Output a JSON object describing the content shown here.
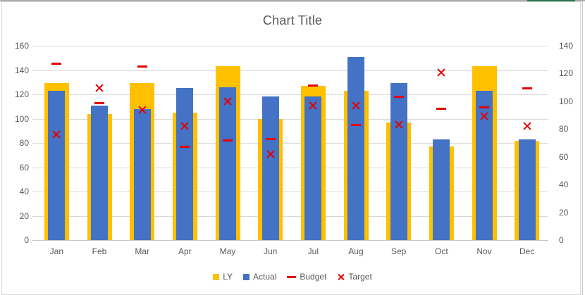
{
  "chart_data": {
    "type": "combo",
    "title": "Chart Title",
    "categories": [
      "Jan",
      "Feb",
      "Mar",
      "Apr",
      "May",
      "Jun",
      "Jul",
      "Aug",
      "Sep",
      "Oct",
      "Nov",
      "Dec"
    ],
    "series": [
      {
        "name": "LY",
        "type": "bar",
        "axis": "left",
        "color": "#FFC000",
        "values": [
          129,
          104,
          129,
          105,
          143,
          100,
          127,
          123,
          97,
          77,
          143,
          82
        ]
      },
      {
        "name": "Actual",
        "type": "bar",
        "axis": "left",
        "color": "#4472C4",
        "values": [
          123,
          111,
          108,
          125,
          126,
          118,
          118,
          151,
          129,
          83,
          123,
          83
        ]
      },
      {
        "name": "Budget",
        "type": "dash-marker",
        "axis": "left",
        "color": "#E50000",
        "values": [
          145,
          113,
          143,
          77,
          82,
          83,
          127,
          95,
          118,
          108,
          109,
          125
        ]
      },
      {
        "name": "Target",
        "type": "x-marker",
        "axis": "left",
        "color": "#E50000",
        "values": [
          87,
          125,
          107,
          94,
          114,
          71,
          111,
          111,
          95,
          138,
          102,
          94
        ]
      }
    ],
    "left_axis": {
      "min": 0,
      "max": 160,
      "step": 20,
      "tick_labels": [
        160,
        140,
        120,
        100,
        80,
        60,
        40,
        20,
        0
      ]
    },
    "right_axis": {
      "min": 0,
      "max": 140,
      "step": 20,
      "tick_labels": [
        140,
        120,
        100,
        80,
        60,
        40,
        20,
        0
      ]
    },
    "gridlines": "horizontal",
    "legend_position": "bottom",
    "colors": {
      "ly": "#FFC000",
      "actual": "#4472C4",
      "marker_red": "#E50000",
      "grid": "#D9D9D9",
      "text": "#595959",
      "sheet_green": "#277650"
    }
  }
}
